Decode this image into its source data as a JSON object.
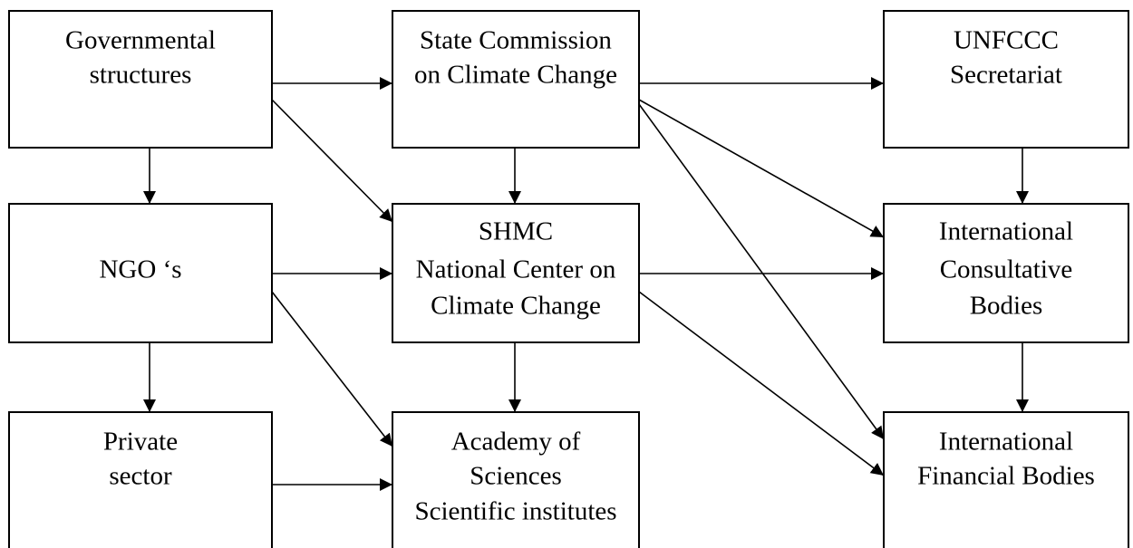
{
  "nodes": [
    {
      "id": "gov",
      "lines": [
        "Governmental",
        "structures"
      ]
    },
    {
      "id": "state",
      "lines": [
        "State Commission",
        "on Climate Change"
      ]
    },
    {
      "id": "unfccc",
      "lines": [
        "UNFCCC",
        "Secretariat"
      ]
    },
    {
      "id": "ngo",
      "lines": [
        "NGO ‘s"
      ]
    },
    {
      "id": "shmc",
      "lines": [
        "SHMC",
        "National Center on",
        "Climate Change"
      ]
    },
    {
      "id": "consult",
      "lines": [
        "International",
        "Consultative",
        "Bodies"
      ]
    },
    {
      "id": "private",
      "lines": [
        "Private",
        "sector"
      ]
    },
    {
      "id": "academy",
      "lines": [
        "Academy of",
        "Sciences",
        "Scientific institutes"
      ]
    },
    {
      "id": "financial",
      "lines": [
        "International",
        "Financial Bodies"
      ]
    }
  ]
}
